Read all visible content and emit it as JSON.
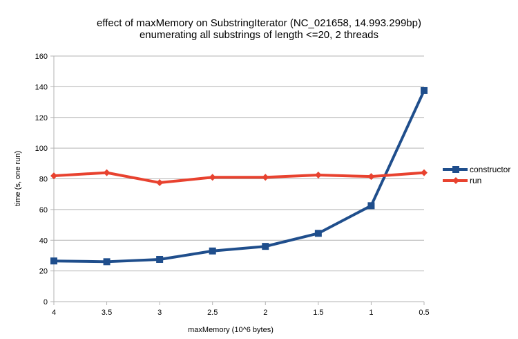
{
  "chart_data": {
    "type": "line",
    "title": "effect of maxMemory on SubstringIterator (NC_021658, 14.993.299bp)",
    "subtitle": "enumerating all substrings of length <=20, 2 threads",
    "xlabel": "maxMemory (10^6 bytes)",
    "ylabel": "time (s, one run)",
    "categories": [
      "4",
      "3.5",
      "3",
      "2.5",
      "2",
      "1.5",
      "1",
      "0.5"
    ],
    "ylim": [
      0,
      160
    ],
    "yticks": [
      "0",
      "20",
      "40",
      "60",
      "80",
      "100",
      "120",
      "140",
      "160"
    ],
    "grid": true,
    "legend_position": "right",
    "series": [
      {
        "name": "constructor",
        "color": "#1f4e8c",
        "marker": "square",
        "values": [
          26.5,
          26,
          27.5,
          33,
          36,
          44.5,
          62.5,
          137.5
        ]
      },
      {
        "name": "run",
        "color": "#e8422f",
        "marker": "diamond",
        "values": [
          82,
          84,
          77.5,
          81,
          81,
          82.5,
          81.5,
          84
        ]
      }
    ]
  }
}
